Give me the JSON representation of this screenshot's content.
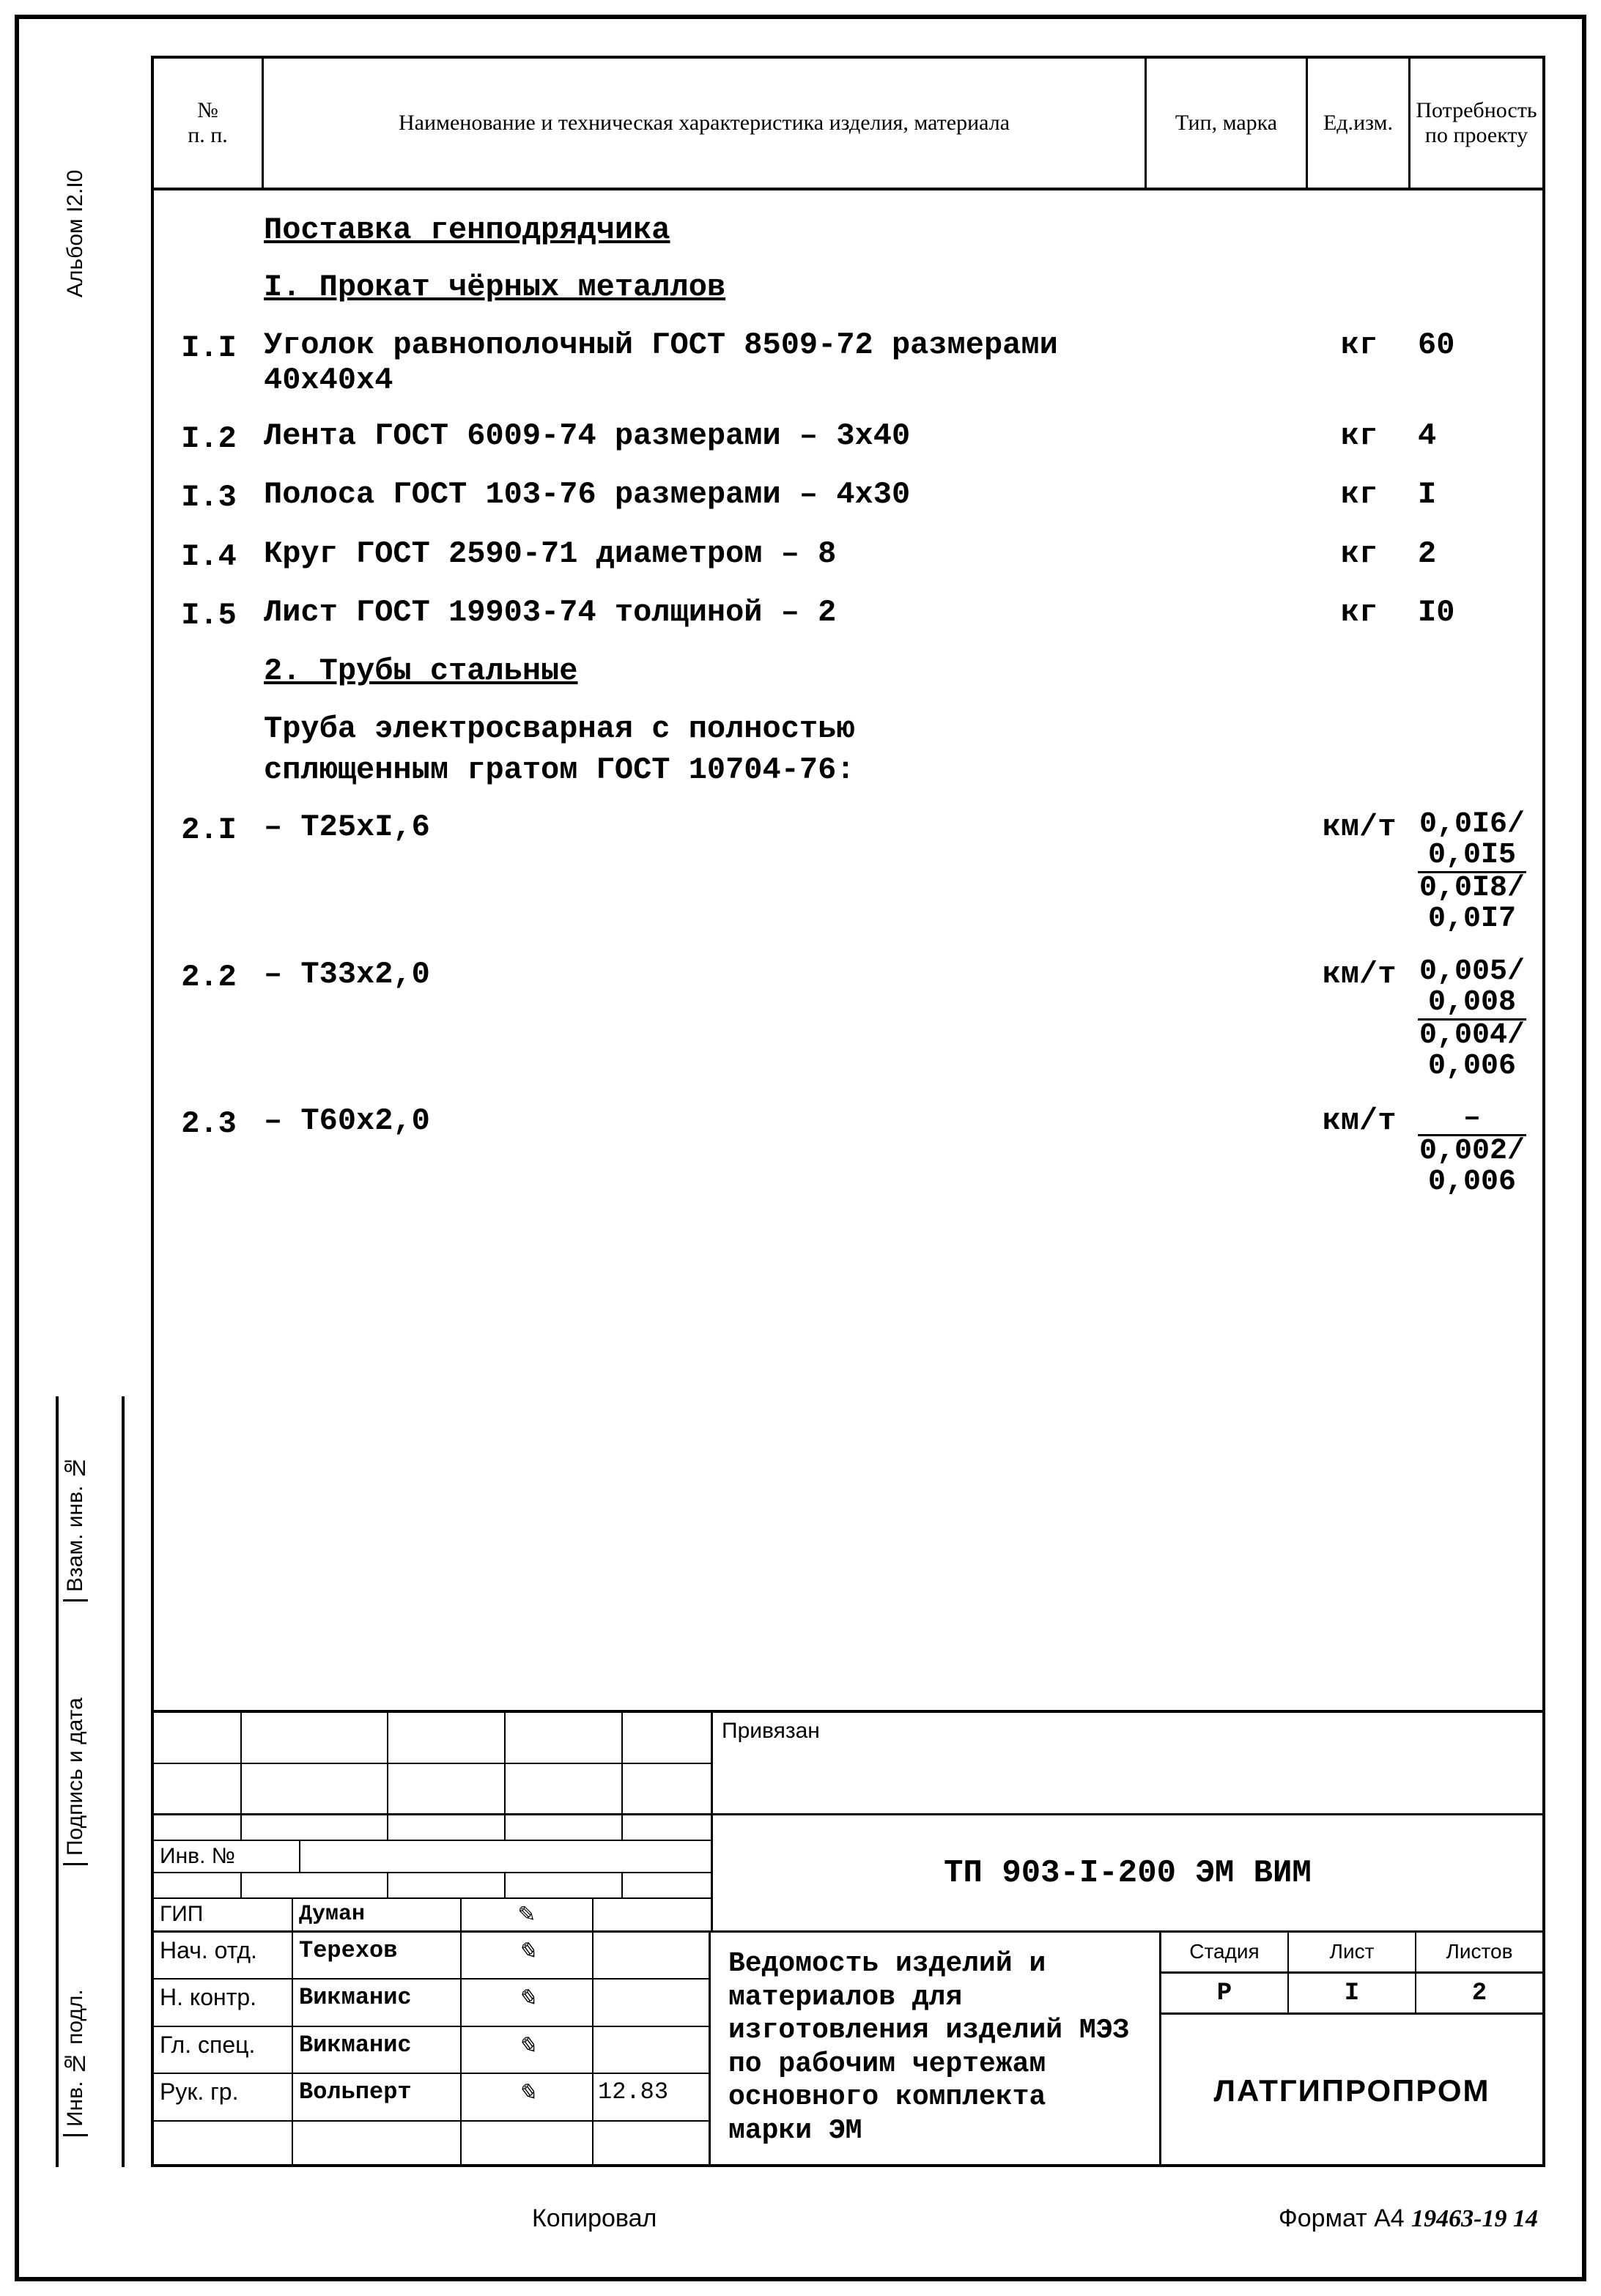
{
  "album_label": "Альбом I2.I0",
  "side_labels": {
    "vzam": "Взам. инв. №",
    "podp": "Подпись и дата",
    "inv": "Инв. № подл."
  },
  "header": {
    "nn1": "№",
    "nn2": "п. п.",
    "name": "Наименование и техническая характеристика изделия, материала",
    "tip": "Тип, марка",
    "ed1": "Ед.",
    "ed2": "изм.",
    "potr": "Потребность по проекту"
  },
  "sec1_title": "Поставка генподрядчика",
  "sec1_sub": "I. Прокат чёрных металлов",
  "rows1": [
    {
      "n": "I.I",
      "name": "Уголок равнополочный ГОСТ 8509-72 размерами 40х40х4",
      "ed": "кг",
      "q": "60"
    },
    {
      "n": "I.2",
      "name": "Лента ГОСТ 6009-74 размерами – 3х40",
      "ed": "кг",
      "q": "4"
    },
    {
      "n": "I.3",
      "name": "Полоса ГОСТ 103-76 размерами – 4х30",
      "ed": "кг",
      "q": "I"
    },
    {
      "n": "I.4",
      "name": "Круг ГОСТ 2590-71 диаметром – 8",
      "ed": "кг",
      "q": "2"
    },
    {
      "n": "I.5",
      "name": "Лист ГОСТ 19903-74 толщиной – 2",
      "ed": "кг",
      "q": "I0"
    }
  ],
  "sec2_sub": "2. Трубы стальные",
  "sec2_intro1": "Труба электросварная с полностью",
  "sec2_intro2": "сплющенным гратом ГОСТ 10704-76:",
  "rows2": [
    {
      "n": "2.I",
      "name": "– Т25хI,6",
      "ed": "км/т",
      "f1n": "0,0I6/",
      "f1d": "0,0I5",
      "f2n": "0,0I8/",
      "f2d": "0,0I7"
    },
    {
      "n": "2.2",
      "name": "– Т33х2,0",
      "ed": "км/т",
      "f1n": "0,005/",
      "f1d": "0,008",
      "f2n": "0,004/",
      "f2d": "0,006"
    },
    {
      "n": "2.3",
      "name": "– Т60х2,0",
      "ed": "км/т",
      "f1n": "–",
      "f1d": "",
      "f2n": "0,002/",
      "f2d": "0,006"
    }
  ],
  "tb": {
    "priv": "Привязан",
    "inv_lbl": "Инв. №",
    "doc_code": "ТП 903-I-200 ЭМ ВИМ",
    "gip_role": "ГИП",
    "gip_name": "Думан",
    "roles": [
      {
        "role": "Нач. отд.",
        "name": "Терехов",
        "sig": "✎",
        "date": ""
      },
      {
        "role": "Н. контр.",
        "name": "Викманис",
        "sig": "✎",
        "date": ""
      },
      {
        "role": "Гл. спец.",
        "name": "Викманис",
        "sig": "✎",
        "date": ""
      },
      {
        "role": "Рук. гр.",
        "name": "Вольперт",
        "sig": "✎",
        "date": "12.83"
      },
      {
        "role": "",
        "name": "",
        "sig": "",
        "date": ""
      }
    ],
    "desc": "Ведомость изделий и материалов для изготовления изделий МЭЗ по рабочим чертежам основного комплекта марки ЭМ",
    "h_stage": "Стадия",
    "h_list": "Лист",
    "h_lists": "Листов",
    "v_stage": "Р",
    "v_list": "I",
    "v_lists": "2",
    "org": "ЛАТГИПРОПРОМ"
  },
  "footer": {
    "kopir": "Копировал",
    "format": "Формат А4",
    "handnum": "19463-19   14"
  },
  "colors": {
    "line": "#000000",
    "bg": "#ffffff"
  }
}
